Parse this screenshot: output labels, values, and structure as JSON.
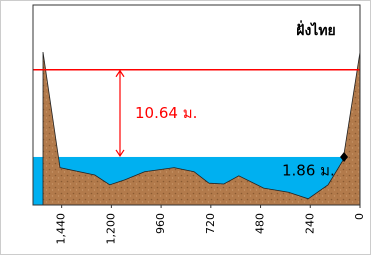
{
  "chart_data": {
    "type": "area",
    "title": "ฝั่งไทย",
    "x": [
      1530,
      1448,
      1280,
      1208,
      1136,
      1040,
      897,
      801,
      729,
      657,
      585,
      465,
      345,
      250,
      154,
      82,
      0
    ],
    "values": [
      14.66,
      0.56,
      -0.34,
      -1.54,
      -0.94,
      0.06,
      0.56,
      0.06,
      -1.34,
      -1.44,
      -0.44,
      -1.94,
      -2.44,
      -3.24,
      -1.54,
      1.46,
      14.66
    ],
    "ground_color": "#b27a4b",
    "water_color": "#00b0f0",
    "bank_color": "#ff0000",
    "water_level": 1.86,
    "water_level_label": "1.86 ม.",
    "gauge_x": 77,
    "bank_level": 12.5,
    "bank_to_water": 10.64,
    "bank_to_water_label": "10.64 ม.",
    "xlim": [
      1530,
      0
    ],
    "ylim": [
      -4,
      20.4
    ],
    "xticks": [
      {
        "value": 1440,
        "label": "1,440"
      },
      {
        "value": 1200,
        "label": "1,200"
      },
      960,
      720,
      480,
      240,
      0
    ]
  }
}
